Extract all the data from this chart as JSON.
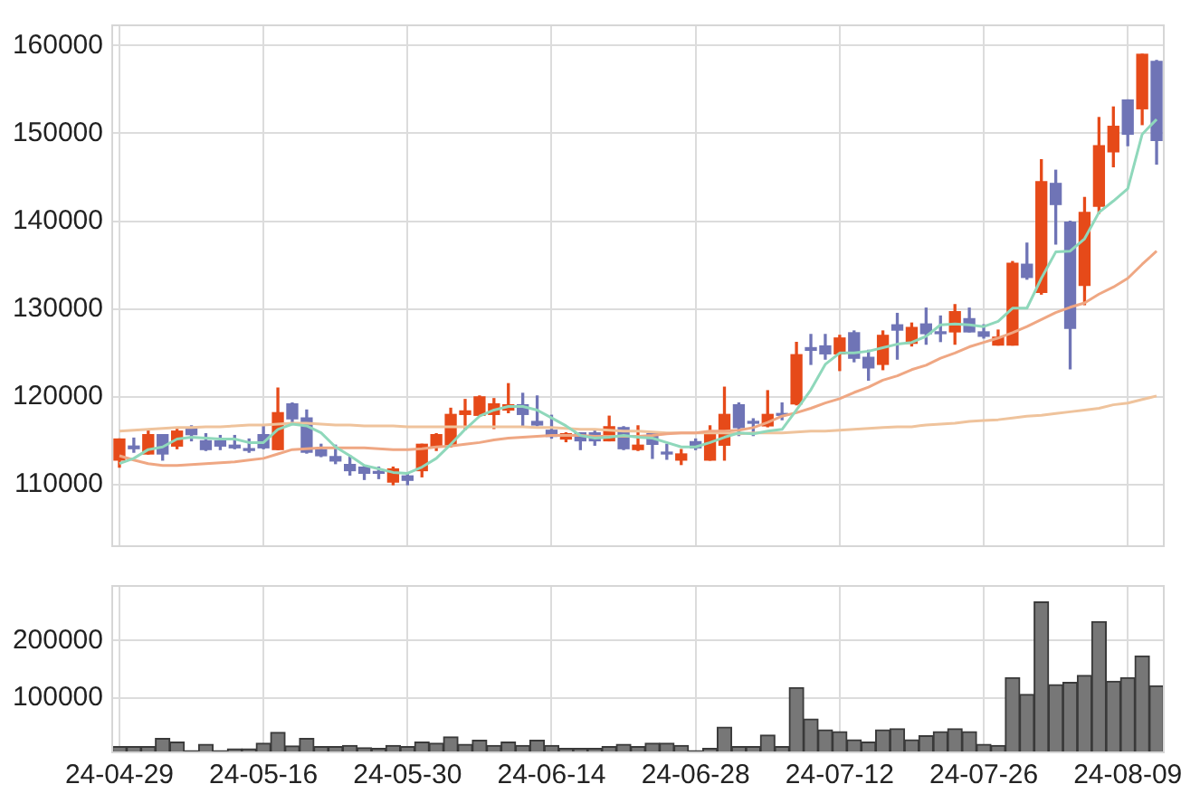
{
  "chart_data": [
    {
      "type": "candlestick",
      "categories": [
        null,
        null,
        null,
        null,
        null,
        null,
        null,
        null,
        null,
        null,
        null,
        null,
        null,
        null,
        null,
        null,
        null,
        null,
        null,
        null,
        null,
        null,
        null,
        null,
        null,
        null,
        null,
        null,
        null,
        null,
        null,
        null,
        null,
        null,
        null,
        null,
        null,
        null,
        null,
        null,
        null,
        null,
        null,
        null,
        null,
        null,
        null,
        null,
        null,
        null,
        null,
        null,
        null,
        null,
        null,
        null,
        null,
        null,
        null,
        null,
        null,
        null,
        null,
        null,
        null,
        null,
        null,
        null,
        null,
        null,
        null,
        null,
        null
      ],
      "ohlc": [
        [
          112800,
          115200,
          112000,
          115200
        ],
        [
          114400,
          115300,
          113700,
          114100
        ],
        [
          113500,
          116300,
          113500,
          115700
        ],
        [
          115700,
          115700,
          112800,
          113500
        ],
        [
          114400,
          116300,
          114100,
          116100
        ],
        [
          116500,
          116700,
          115000,
          115700
        ],
        [
          115000,
          115800,
          113900,
          114000
        ],
        [
          115000,
          115600,
          114000,
          114400
        ],
        [
          114500,
          115600,
          114100,
          114200
        ],
        [
          114100,
          115200,
          113700,
          113900
        ],
        [
          115700,
          116700,
          114100,
          114200
        ],
        [
          114000,
          121000,
          114000,
          118200
        ],
        [
          119200,
          119300,
          117100,
          117500
        ],
        [
          117600,
          118500,
          113600,
          113700
        ],
        [
          114000,
          114600,
          113200,
          113300
        ],
        [
          113200,
          114500,
          112400,
          112700
        ],
        [
          112300,
          113300,
          111100,
          111600
        ],
        [
          112000,
          112200,
          110600,
          111300
        ],
        [
          111500,
          112000,
          110700,
          111300
        ],
        [
          110300,
          112000,
          110000,
          111800
        ],
        [
          111000,
          111300,
          110000,
          110500
        ],
        [
          111600,
          114600,
          110900,
          114600
        ],
        [
          114400,
          115800,
          113900,
          115700
        ],
        [
          114500,
          118700,
          114300,
          118000
        ],
        [
          118000,
          119700,
          116300,
          118400
        ],
        [
          117900,
          120100,
          117800,
          120000
        ],
        [
          118000,
          119800,
          116400,
          119200
        ],
        [
          118500,
          121500,
          118200,
          119100
        ],
        [
          119100,
          120400,
          116700,
          118000
        ],
        [
          117200,
          120100,
          116700,
          116800
        ],
        [
          116200,
          117900,
          115300,
          115500
        ],
        [
          115200,
          115900,
          114900,
          115800
        ],
        [
          115900,
          115900,
          114000,
          115000
        ],
        [
          115900,
          116100,
          114500,
          115000
        ],
        [
          115000,
          117800,
          115000,
          116600
        ],
        [
          116500,
          116600,
          114000,
          114100
        ],
        [
          114000,
          116700,
          113900,
          114500
        ],
        [
          115800,
          115900,
          113000,
          114600
        ],
        [
          113700,
          114600,
          112900,
          113500
        ],
        [
          112800,
          114000,
          112300,
          113500
        ],
        [
          114900,
          115200,
          114000,
          114200
        ],
        [
          112800,
          116700,
          112800,
          115700
        ],
        [
          114500,
          121100,
          112800,
          118000
        ],
        [
          119100,
          119300,
          115600,
          116500
        ],
        [
          117200,
          117500,
          115600,
          117000
        ],
        [
          116700,
          120700,
          116600,
          118000
        ],
        [
          118100,
          119300,
          117400,
          117900
        ],
        [
          119200,
          126200,
          119100,
          124800
        ],
        [
          125600,
          127100,
          123700,
          125300
        ],
        [
          125800,
          127100,
          124300,
          124900
        ],
        [
          124900,
          127000,
          123000,
          126700
        ],
        [
          127300,
          127500,
          124000,
          124400
        ],
        [
          124500,
          125300,
          121900,
          123300
        ],
        [
          123700,
          127500,
          123100,
          127000
        ],
        [
          128200,
          129500,
          124300,
          127600
        ],
        [
          126100,
          128400,
          125800,
          127900
        ],
        [
          128300,
          130100,
          126000,
          127200
        ],
        [
          127400,
          129200,
          126300,
          127200
        ],
        [
          127400,
          130500,
          126000,
          129700
        ],
        [
          128900,
          130100,
          127400,
          127400
        ],
        [
          127400,
          128200,
          126700,
          126900
        ],
        [
          125900,
          127600,
          125900,
          126800
        ],
        [
          125900,
          135400,
          125900,
          135200
        ],
        [
          135100,
          137500,
          133400,
          133600
        ],
        [
          131900,
          147000,
          131700,
          144500
        ],
        [
          144300,
          145800,
          137400,
          141900
        ],
        [
          139900,
          140000,
          123200,
          127800
        ],
        [
          132700,
          142700,
          130500,
          141000
        ],
        [
          141700,
          151800,
          140900,
          148600
        ],
        [
          147900,
          153000,
          146200,
          150800
        ],
        [
          153800,
          153800,
          148600,
          149900
        ],
        [
          152800,
          159000,
          151000,
          159000
        ],
        [
          158200,
          158300,
          146500,
          149200
        ]
      ],
      "colors": [
        "#e64a19",
        "#6f74b6",
        "#e64a19",
        "#6f74b6",
        "#e64a19",
        "#6f74b6",
        "#6f74b6",
        "#6f74b6",
        "#6f74b6",
        "#6f74b6",
        "#6f74b6",
        "#e64a19",
        "#6f74b6",
        "#6f74b6",
        "#6f74b6",
        "#6f74b6",
        "#6f74b6",
        "#6f74b6",
        "#6f74b6",
        "#e64a19",
        "#6f74b6",
        "#e64a19",
        "#e64a19",
        "#e64a19",
        "#e64a19",
        "#e64a19",
        "#e64a19",
        "#e64a19",
        "#6f74b6",
        "#6f74b6",
        "#6f74b6",
        "#e64a19",
        "#6f74b6",
        "#6f74b6",
        "#e64a19",
        "#6f74b6",
        "#e64a19",
        "#6f74b6",
        "#6f74b6",
        "#e64a19",
        "#6f74b6",
        "#e64a19",
        "#e64a19",
        "#6f74b6",
        "#6f74b6",
        "#e64a19",
        "#6f74b6",
        "#e64a19",
        "#6f74b6",
        "#6f74b6",
        "#e64a19",
        "#6f74b6",
        "#6f74b6",
        "#e64a19",
        "#6f74b6",
        "#e64a19",
        "#6f74b6",
        "#6f74b6",
        "#e64a19",
        "#6f74b6",
        "#6f74b6",
        "#e64a19",
        "#e64a19",
        "#6f74b6",
        "#e64a19",
        "#6f74b6",
        "#6f74b6",
        "#e64a19",
        "#e64a19",
        "#e64a19",
        "#6f74b6",
        "#e64a19",
        "#6f74b6"
      ],
      "series": [
        {
          "type": "line",
          "color": "#8fd8bb",
          "values": [
            112400,
            113000,
            114000,
            114300,
            115200,
            115400,
            115300,
            115200,
            115200,
            114800,
            114800,
            116300,
            116900,
            116700,
            115900,
            114300,
            113300,
            112200,
            111800,
            111400,
            111300,
            112000,
            113000,
            114600,
            116300,
            117800,
            118500,
            118900,
            118900,
            118500,
            117600,
            116700,
            115600,
            115300,
            115400,
            115600,
            115400,
            115300,
            114800,
            114300,
            114300,
            114800,
            115400,
            115900,
            115800,
            116100,
            116300,
            118500,
            120800,
            123700,
            125000,
            125000,
            125200,
            125600,
            126000,
            126200,
            126900,
            128200,
            128300,
            128200,
            128000,
            128600,
            130100,
            130100,
            133500,
            136500,
            136600,
            138000,
            141000,
            142300,
            143700,
            149900,
            151600
          ]
        },
        {
          "type": "line",
          "color": "#efa783",
          "values": [
            113300,
            112800,
            112400,
            112200,
            112200,
            112300,
            112400,
            112500,
            112600,
            112800,
            113000,
            113500,
            114000,
            114100,
            114200,
            114200,
            114200,
            114200,
            114100,
            114000,
            114000,
            114100,
            114300,
            114400,
            114600,
            114800,
            115100,
            115300,
            115400,
            115500,
            115600,
            115600,
            115600,
            115500,
            115500,
            115500,
            115500,
            115600,
            115800,
            115900,
            115900,
            116100,
            116100,
            116200,
            116500,
            117100,
            117800,
            118200,
            118700,
            119300,
            119800,
            120500,
            121100,
            121900,
            122400,
            123100,
            123600,
            124400,
            125000,
            125700,
            126200,
            126700,
            127300,
            128000,
            128800,
            129600,
            130200,
            130700,
            131700,
            132500,
            133500,
            135100,
            136600
          ]
        },
        {
          "type": "line",
          "color": "#efc39c",
          "values": [
            116100,
            116200,
            116300,
            116400,
            116500,
            116500,
            116600,
            116600,
            116700,
            116800,
            116800,
            116900,
            117000,
            117000,
            116900,
            116800,
            116800,
            116700,
            116700,
            116700,
            116600,
            116600,
            116600,
            116600,
            116600,
            116600,
            116600,
            116600,
            116600,
            116500,
            116500,
            116400,
            116300,
            116300,
            116200,
            116100,
            116100,
            116000,
            115900,
            115900,
            115900,
            115900,
            115900,
            115800,
            115900,
            115900,
            115900,
            116000,
            116100,
            116100,
            116200,
            116300,
            116400,
            116500,
            116600,
            116600,
            116800,
            116900,
            117000,
            117200,
            117300,
            117400,
            117600,
            117800,
            117900,
            118100,
            118300,
            118500,
            118700,
            119100,
            119300,
            119700,
            120100
          ]
        }
      ],
      "ylim": [
        103000,
        162300
      ],
      "yticks": [
        110000,
        120000,
        130000,
        140000,
        150000,
        160000
      ],
      "grid": true,
      "tick_labels": "y"
    },
    {
      "type": "bar",
      "categories": [
        "24-04-29",
        null,
        null,
        null,
        null,
        null,
        null,
        null,
        null,
        null,
        "24-05-16",
        null,
        null,
        null,
        null,
        null,
        null,
        null,
        null,
        null,
        "24-05-30",
        null,
        null,
        null,
        null,
        null,
        null,
        null,
        null,
        null,
        "24-06-14",
        null,
        null,
        null,
        null,
        null,
        null,
        null,
        null,
        null,
        "24-06-28",
        null,
        null,
        null,
        null,
        null,
        null,
        null,
        null,
        null,
        "24-07-12",
        null,
        null,
        null,
        null,
        null,
        null,
        null,
        null,
        null,
        "24-07-26",
        null,
        null,
        null,
        null,
        null,
        null,
        null,
        null,
        null,
        "24-08-09",
        null,
        null
      ],
      "values": [
        15000,
        15000,
        15000,
        29000,
        23000,
        8000,
        19000,
        8000,
        11000,
        11000,
        21000,
        40000,
        16000,
        29000,
        15000,
        15000,
        17000,
        13000,
        12000,
        17000,
        15000,
        23000,
        21000,
        32000,
        19000,
        26000,
        17000,
        23000,
        17000,
        26000,
        17000,
        12000,
        12000,
        12000,
        15000,
        19000,
        15000,
        21000,
        21000,
        17000,
        8000,
        12000,
        49000,
        15000,
        15000,
        35000,
        15000,
        118000,
        63000,
        44000,
        41000,
        27000,
        23000,
        44000,
        46000,
        27000,
        34000,
        41000,
        46000,
        41000,
        19000,
        17000,
        135000,
        106000,
        267000,
        123000,
        127000,
        139000,
        233000,
        129000,
        135000,
        173000,
        121000
      ],
      "color": "#777777",
      "ylim": [
        5000,
        295000
      ],
      "yticks": [
        100000,
        200000
      ],
      "grid": true
    }
  ]
}
